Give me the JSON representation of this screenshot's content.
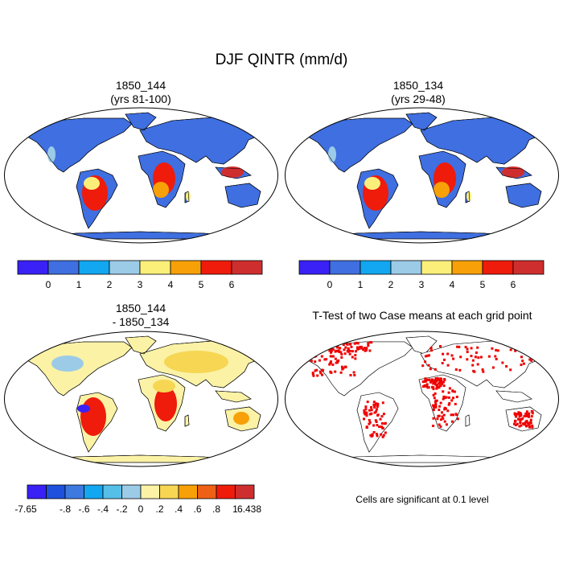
{
  "figure_title": "DJF QINTR (mm/d)",
  "panels": [
    {
      "id": "p1",
      "title_line1": "1850_144",
      "title_line2": "(yrs 81-100)"
    },
    {
      "id": "p2",
      "title_line1": "1850_134",
      "title_line2": "(yrs 29-48)"
    },
    {
      "id": "p3",
      "title_line1": "1850_144",
      "title_line2": "- 1850_134"
    },
    {
      "id": "p4",
      "title_line1": "T-Test of two Case means at each grid point",
      "title_line2": ""
    }
  ],
  "colorbars": {
    "abs": {
      "colors": [
        "#3a21f5",
        "#3f6fe0",
        "#12a7f0",
        "#9ccbe8",
        "#fbef7a",
        "#f7a007",
        "#ef1b0b",
        "#cf2e2e"
      ],
      "labels": [
        "0",
        "1",
        "2",
        "3",
        "4",
        "5",
        "6"
      ]
    },
    "diff": {
      "colors": [
        "#3a21f5",
        "#1f50dd",
        "#3d7ae0",
        "#12a7f0",
        "#56bfe8",
        "#9ccbe8",
        "#fbf2a6",
        "#f6d653",
        "#f7a007",
        "#ee6016",
        "#ef1b0b",
        "#cf2e2e"
      ],
      "labels": [
        "-7.65",
        "-.8",
        "-.6",
        "-.4",
        "-.2",
        "0",
        ".2",
        ".4",
        ".6",
        ".8",
        "1",
        "6.438"
      ]
    }
  },
  "significance_color": "#ee0000",
  "note": "Cells are significant at 0.1 level"
}
